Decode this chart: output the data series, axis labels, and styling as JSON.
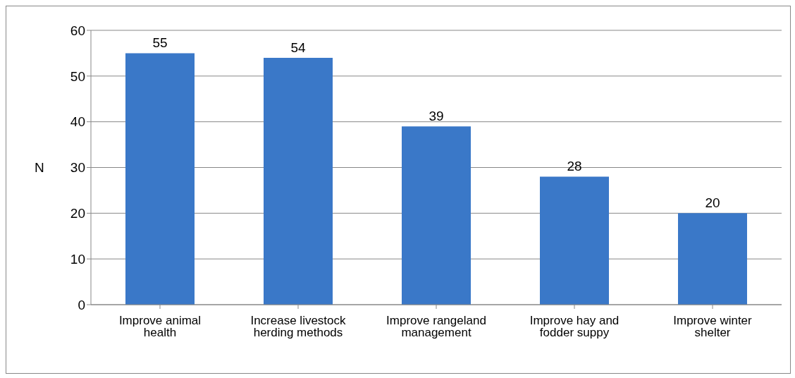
{
  "chart_data": {
    "type": "bar",
    "ylabel": "N",
    "categories": [
      "Improve animal health",
      "Increase livestock herding methods",
      "Improve rangeland management",
      "Improve hay and fodder suppy",
      "Improve winter shelter"
    ],
    "values": [
      55,
      54,
      39,
      28,
      20
    ],
    "color": "#3a78c8",
    "ylim": [
      0,
      60
    ],
    "yticks": [
      0,
      10,
      20,
      30,
      40,
      50,
      60
    ],
    "grid": "y",
    "data_labels": true
  }
}
